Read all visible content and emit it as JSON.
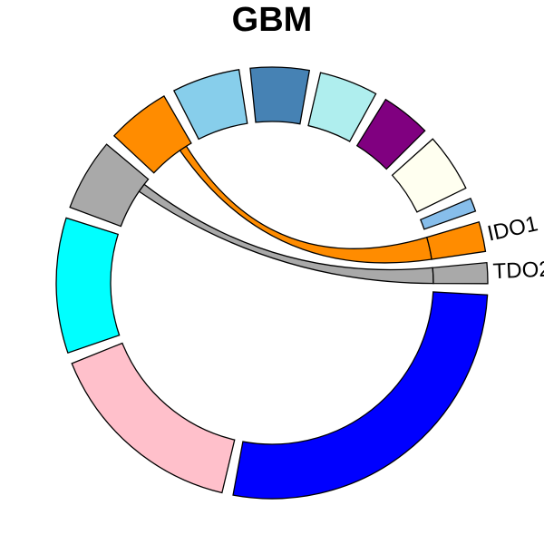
{
  "chart_data": {
    "type": "chord",
    "title": "GBM",
    "sectors": [
      {
        "label": "",
        "value": 40.0,
        "color": "#0000FF"
      },
      {
        "label": "",
        "value": 22.5,
        "color": "#FFC0CB"
      },
      {
        "label": "",
        "value": 15.0,
        "color": "#00FFFF"
      },
      {
        "label": "",
        "value": 8.0,
        "color": "#A9A9A9"
      },
      {
        "label": "",
        "value": 7.0,
        "color": "#FF8C00"
      },
      {
        "label": "",
        "value": 7.5,
        "color": "#87CEEB"
      },
      {
        "label": "",
        "value": 6.5,
        "color": "#4682B4"
      },
      {
        "label": "",
        "value": 6.5,
        "color": "#AFEEEE"
      },
      {
        "label": "",
        "value": 5.5,
        "color": "#800080"
      },
      {
        "label": "",
        "value": 6.5,
        "color": "#FFFFF0"
      },
      {
        "label": "",
        "value": 1.5,
        "color": "#87BEEB"
      },
      {
        "label": "IDO1",
        "value": 3.3,
        "color": "#FF8C00"
      },
      {
        "label": "TDO2",
        "value": 2.3,
        "color": "#A9A9A9"
      }
    ],
    "links": [
      {
        "from": 11,
        "to": 4
      },
      {
        "from": 12,
        "to": 3
      }
    ]
  }
}
